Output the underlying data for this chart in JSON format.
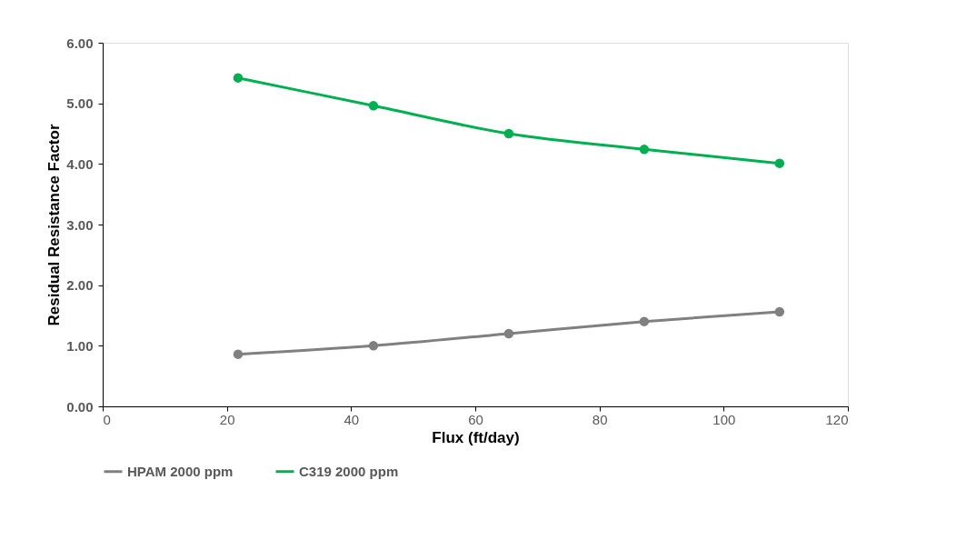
{
  "chart_data": {
    "type": "line",
    "xlabel": "Flux (ft/day)",
    "ylabel": "Residual Resistance Factor",
    "x": [
      21.8,
      43.6,
      65.4,
      87.2,
      109
    ],
    "series": [
      {
        "name": "HPAM 2000 ppm",
        "color": "#808080",
        "values": [
          0.86,
          1.0,
          1.2,
          1.4,
          1.56
        ]
      },
      {
        "name": "C319 2000 ppm",
        "color": "#00b050",
        "values": [
          5.42,
          4.96,
          4.5,
          4.24,
          4.01
        ]
      }
    ],
    "xlim": [
      0,
      120
    ],
    "xticks": [
      0,
      20,
      40,
      60,
      80,
      100,
      120
    ],
    "ylim": [
      0,
      6
    ],
    "yticks": [
      {
        "value": 0,
        "label": "0.00"
      },
      {
        "value": 1,
        "label": "1.00"
      },
      {
        "value": 2,
        "label": "2.00"
      },
      {
        "value": 3,
        "label": "3.00"
      },
      {
        "value": 4,
        "label": "4.00"
      },
      {
        "value": 5,
        "label": "5.00"
      },
      {
        "value": 6,
        "label": "6.00"
      }
    ],
    "grid": false,
    "legend": "bottom",
    "marker": "circle",
    "line_style": "solid"
  }
}
